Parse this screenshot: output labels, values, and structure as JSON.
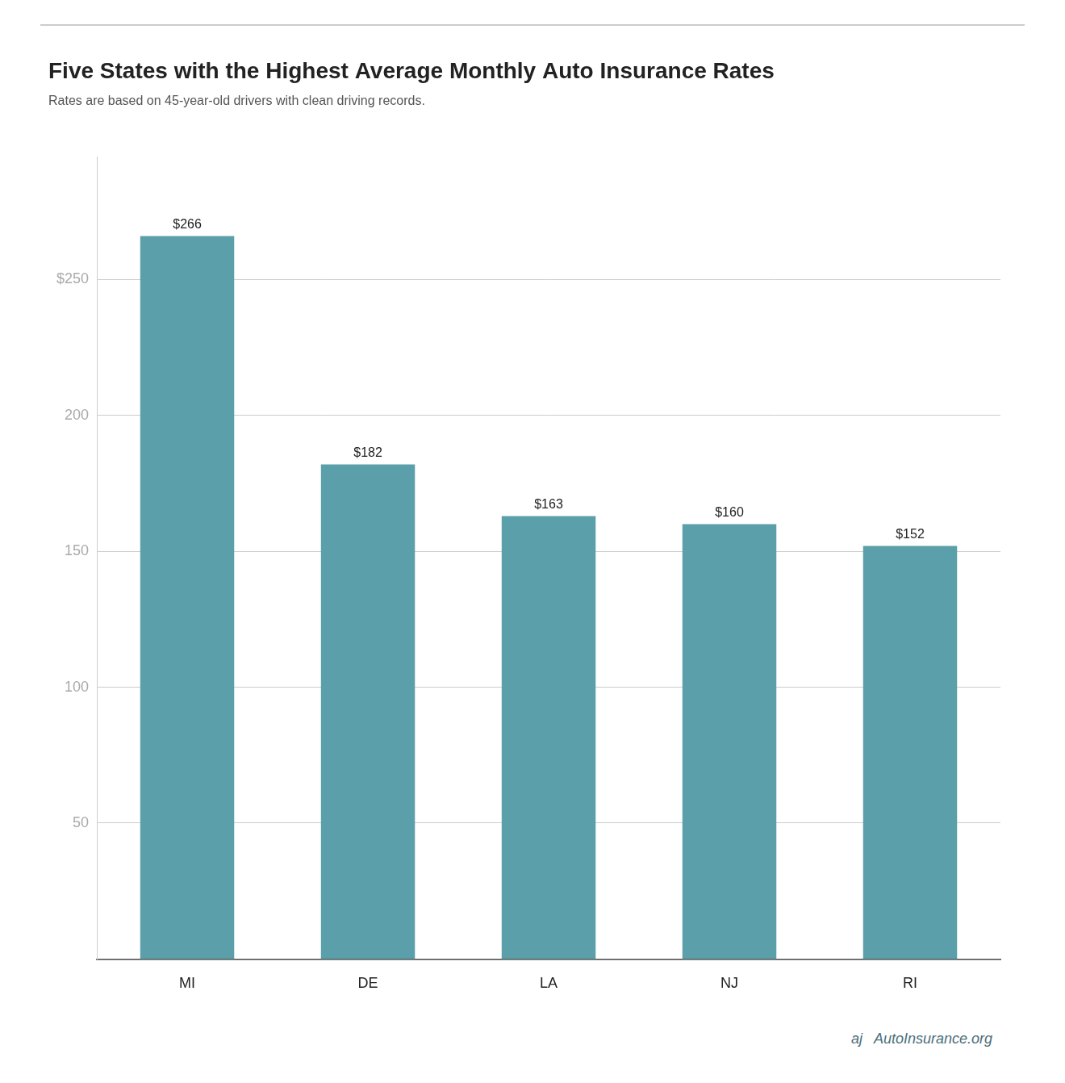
{
  "chart_data": {
    "type": "bar",
    "title": "Five States with the Highest Average Monthly Auto Insurance Rates",
    "subtitle": "Rates are based on 45-year-old drivers with clean driving records.",
    "categories": [
      "MI",
      "DE",
      "LA",
      "NJ",
      "RI"
    ],
    "values": [
      266,
      182,
      163,
      160,
      152
    ],
    "value_labels": [
      "$266",
      "$182",
      "$163",
      "$160",
      "$152"
    ],
    "data_labels": true,
    "color": "#5b9faa",
    "ylim": [
      0,
      295
    ],
    "yticks": [
      {
        "value": 250,
        "label": "$250"
      },
      200,
      150,
      100,
      50
    ],
    "grid": true,
    "annotations": [
      "aj",
      "AutoInsurance.org"
    ]
  }
}
